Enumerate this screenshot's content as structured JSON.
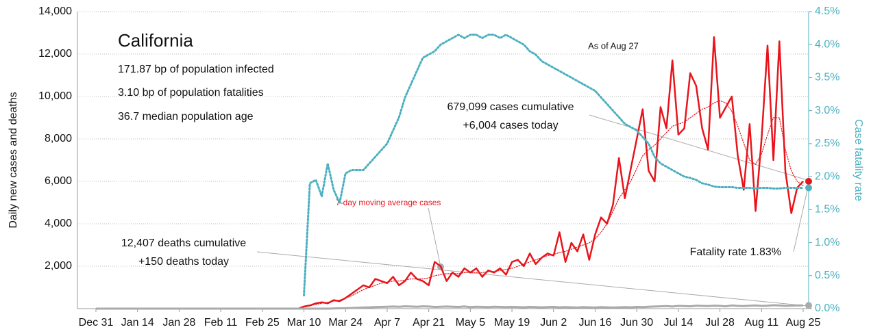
{
  "chart_data": {
    "type": "line",
    "title": "California",
    "stats": [
      "171.87 bp of population infected",
      "3.10 bp of population fatalities",
      "36.7 median population age"
    ],
    "as_of": "As of Aug 27",
    "annotations": {
      "cases_cumulative": "679,099 cases cumulative",
      "cases_today": "+6,004 cases today",
      "deaths_cumulative": "12,407 deaths cumulative",
      "deaths_today": "+150 deaths today",
      "fatality": "Fatality rate 1.83%"
    },
    "y_label": "Daily new cases and deaths",
    "y2_label": "Case fatality rate",
    "categories": [
      "Dec 31",
      null,
      null,
      null,
      null,
      null,
      null,
      "Jan 14",
      null,
      null,
      null,
      null,
      null,
      null,
      "Jan 28",
      null,
      null,
      null,
      null,
      null,
      null,
      "Feb 11",
      null,
      null,
      null,
      null,
      null,
      null,
      "Feb 25",
      null,
      null,
      null,
      null,
      null,
      null,
      "Mar 10",
      null,
      null,
      null,
      null,
      null,
      null,
      "Mar 24",
      null,
      null,
      null,
      null,
      null,
      null,
      "Apr 7",
      null,
      null,
      null,
      null,
      null,
      null,
      "Apr 21",
      null,
      null,
      null,
      null,
      null,
      null,
      "May 5",
      null,
      null,
      null,
      null,
      null,
      null,
      "May 19",
      null,
      null,
      null,
      null,
      null,
      null,
      "Jun 2",
      null,
      null,
      null,
      null,
      null,
      null,
      "Jun 16",
      null,
      null,
      null,
      null,
      null,
      null,
      "Jun 30",
      null,
      null,
      null,
      null,
      null,
      null,
      "Jul 14",
      null,
      null,
      null,
      null,
      null,
      null,
      "Jul 28",
      null,
      null,
      null,
      null,
      null,
      null,
      "Aug 11",
      null,
      null,
      null,
      null,
      null,
      null,
      "Aug 25"
    ],
    "series": [
      {
        "color": "#e8141b",
        "style": "solid",
        "width": 2.5,
        "values": [
          0,
          0,
          0,
          0,
          0,
          0,
          0,
          0,
          0,
          0,
          0,
          0,
          0,
          0,
          0,
          0,
          0,
          0,
          0,
          0,
          0,
          0,
          0,
          0,
          0,
          0,
          0,
          0,
          0,
          0,
          0,
          0,
          0,
          0,
          0,
          100,
          150,
          250,
          300,
          250,
          400,
          350,
          500,
          700,
          900,
          1100,
          1000,
          1400,
          1300,
          1200,
          1500,
          1100,
          1300,
          1700,
          1400,
          1300,
          1100,
          2200,
          2000,
          1300,
          1700,
          1500,
          1900,
          1700,
          1900,
          1500,
          1800,
          1700,
          1900,
          1600,
          2200,
          2300,
          2000,
          2600,
          2100,
          2400,
          2600,
          2500,
          3600,
          2200,
          3100,
          2700,
          3500,
          2300,
          3500,
          4300,
          4000,
          4900,
          7100,
          5200,
          6600,
          8000,
          9400,
          6500,
          6000,
          9500,
          8500,
          11700,
          8200,
          8500,
          11100,
          10500,
          8500,
          7500,
          12800,
          9000,
          9500,
          10000,
          7200,
          5600,
          8700,
          4600,
          8000,
          12400,
          7000,
          12600,
          6500,
          4500,
          5700,
          6000
        ]
      },
      {
        "name": "7-day moving average cases",
        "color": "#e8141b",
        "style": "dotted",
        "width": 1.2,
        "values": [
          null,
          null,
          null,
          null,
          null,
          null,
          null,
          null,
          null,
          null,
          null,
          null,
          null,
          null,
          null,
          null,
          null,
          null,
          null,
          null,
          null,
          null,
          null,
          null,
          null,
          null,
          null,
          null,
          null,
          null,
          null,
          null,
          null,
          null,
          null,
          100,
          150,
          200,
          250,
          300,
          350,
          400,
          500,
          600,
          750,
          900,
          1000,
          1100,
          1200,
          1250,
          1300,
          1300,
          1350,
          1400,
          1400,
          1400,
          1450,
          1550,
          1600,
          1650,
          1650,
          1650,
          1700,
          1700,
          1700,
          1700,
          1750,
          1750,
          1800,
          1850,
          1900,
          2000,
          2100,
          2200,
          2300,
          2400,
          2500,
          2550,
          2650,
          2700,
          2800,
          2900,
          3000,
          3100,
          3300,
          3600,
          4000,
          4600,
          5200,
          5600,
          6000,
          6600,
          7200,
          7500,
          7700,
          8000,
          8300,
          8600,
          8700,
          8800,
          9000,
          9200,
          9400,
          9500,
          9700,
          9800,
          9700,
          9300,
          8600,
          7800,
          7000,
          6800,
          7300,
          8200,
          9000,
          9000,
          7500,
          6500,
          6000,
          5800
        ]
      },
      {
        "color": "#aaaaaa",
        "style": "solid",
        "width": 3,
        "values": [
          0,
          0,
          0,
          0,
          0,
          0,
          0,
          0,
          0,
          0,
          0,
          0,
          0,
          0,
          0,
          0,
          0,
          0,
          0,
          0,
          0,
          0,
          0,
          0,
          0,
          0,
          0,
          0,
          0,
          0,
          0,
          0,
          0,
          0,
          0,
          0,
          0,
          0,
          0,
          0,
          10,
          15,
          20,
          30,
          40,
          50,
          60,
          70,
          80,
          90,
          100,
          90,
          110,
          100,
          90,
          110,
          100,
          80,
          90,
          100,
          90,
          80,
          100,
          70,
          90,
          80,
          70,
          90,
          80,
          70,
          80,
          70,
          60,
          80,
          70,
          60,
          70,
          80,
          60,
          70,
          60,
          50,
          70,
          60,
          50,
          70,
          60,
          50,
          60,
          70,
          60,
          80,
          70,
          90,
          100,
          110,
          120,
          100,
          130,
          120,
          110,
          140,
          130,
          120,
          140,
          130,
          110,
          150,
          130,
          120,
          140,
          150,
          130,
          140,
          160,
          150,
          130,
          140,
          150,
          150
        ]
      },
      {
        "color": "#4bb0c0",
        "style": "dotted",
        "width": 3,
        "axis": "y2",
        "values": [
          null,
          null,
          null,
          null,
          null,
          null,
          null,
          null,
          null,
          null,
          null,
          null,
          null,
          null,
          null,
          null,
          null,
          null,
          null,
          null,
          null,
          null,
          null,
          null,
          null,
          null,
          null,
          null,
          null,
          null,
          null,
          null,
          null,
          null,
          null,
          0.2,
          1.9,
          1.95,
          1.7,
          2.2,
          1.8,
          1.6,
          2.05,
          2.1,
          2.1,
          2.1,
          2.2,
          2.3,
          2.4,
          2.5,
          2.7,
          2.9,
          3.2,
          3.4,
          3.6,
          3.8,
          3.85,
          3.9,
          4.0,
          4.05,
          4.1,
          4.15,
          4.1,
          4.15,
          4.15,
          4.1,
          4.15,
          4.15,
          4.1,
          4.15,
          4.1,
          4.05,
          4.0,
          3.9,
          3.85,
          3.75,
          3.7,
          3.65,
          3.6,
          3.55,
          3.5,
          3.45,
          3.4,
          3.35,
          3.3,
          3.2,
          3.1,
          3.0,
          2.9,
          2.8,
          2.75,
          2.7,
          2.6,
          2.5,
          2.3,
          2.2,
          2.15,
          2.1,
          2.05,
          2.0,
          1.98,
          1.95,
          1.9,
          1.88,
          1.85,
          1.84,
          1.84,
          1.84,
          1.83,
          1.83,
          1.83,
          1.82,
          1.83,
          1.83,
          1.82,
          1.82,
          1.83,
          1.83,
          1.83,
          1.83
        ]
      }
    ],
    "ylim": [
      0,
      14000
    ],
    "yticks": [
      {
        "value": 2000,
        "label": "2,000"
      },
      {
        "value": 4000,
        "label": "4,000"
      },
      {
        "value": 6000,
        "label": "6,000"
      },
      {
        "value": 8000,
        "label": "8,000"
      },
      {
        "value": 10000,
        "label": "10,000"
      },
      {
        "value": 12000,
        "label": "12,000"
      },
      {
        "value": 14000,
        "label": "14,000"
      }
    ],
    "y2lim": [
      0,
      4.5
    ],
    "y2ticks": [
      {
        "value": 0,
        "label": "0.0%"
      },
      {
        "value": 0.5,
        "label": "0.5%"
      },
      {
        "value": 1,
        "label": "1.0%"
      },
      {
        "value": 1.5,
        "label": "1.5%"
      },
      {
        "value": 2,
        "label": "2.0%"
      },
      {
        "value": 2.5,
        "label": "2.5%"
      },
      {
        "value": 3,
        "label": "3.0%"
      },
      {
        "value": 3.5,
        "label": "3.5%"
      },
      {
        "value": 4,
        "label": "4.0%"
      },
      {
        "value": 4.5,
        "label": "4.5%"
      }
    ],
    "grid": true
  }
}
